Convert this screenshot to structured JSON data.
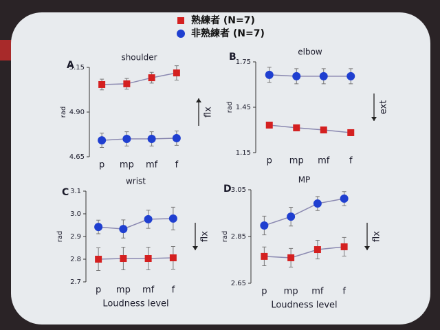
{
  "chart_data": [
    {
      "type": "line",
      "label": "A",
      "title": "shoulder",
      "ylabel": "rad",
      "annotation": "flx",
      "categories": [
        "p",
        "mp",
        "mf",
        "f"
      ],
      "series": [
        {
          "name": "熟練者 (N=7)",
          "color": "#d42020",
          "marker": "square",
          "values": [
            5.054,
            5.058,
            5.092,
            5.119
          ],
          "errors": [
            0.03,
            0.03,
            0.03,
            0.04
          ]
        },
        {
          "name": "非熟練者 (N=7)",
          "color": "#1f3fd0",
          "marker": "circle",
          "values": [
            4.742,
            4.75,
            4.75,
            4.754
          ],
          "errors": [
            0.04,
            0.04,
            0.04,
            0.04
          ]
        }
      ],
      "ylim": [
        4.65,
        5.15
      ],
      "yticks": [
        4.65,
        {
          "value": 4.9,
          "label": "4.90"
        },
        5.15
      ]
    },
    {
      "type": "line",
      "label": "B",
      "title": "elbow",
      "ylabel": "rad",
      "annotation": "ext",
      "categories": [
        "p",
        "mp",
        "mf",
        "f"
      ],
      "series": [
        {
          "name": "熟練者 (N=7)",
          "color": "#d42020",
          "marker": "square",
          "values": [
            1.332,
            1.314,
            1.3,
            1.282
          ],
          "errors": [
            0.02,
            0.02,
            0.02,
            0.02
          ]
        },
        {
          "name": "非熟練者 (N=7)",
          "color": "#1f3fd0",
          "marker": "circle",
          "values": [
            1.664,
            1.655,
            1.655,
            1.655
          ],
          "errors": [
            0.05,
            0.05,
            0.05,
            0.05
          ]
        }
      ],
      "ylim": [
        1.15,
        1.75
      ],
      "yticks": [
        1.15,
        1.45,
        1.75
      ]
    },
    {
      "type": "line",
      "label": "C",
      "title": "wrist",
      "ylabel": "rad",
      "xlabel": "Loudness level",
      "annotation": "flx",
      "categories": [
        "p",
        "mp",
        "mf",
        "f"
      ],
      "series": [
        {
          "name": "熟練者 (N=7)",
          "color": "#d42020",
          "marker": "square",
          "values": [
            2.8,
            2.803,
            2.803,
            2.806
          ],
          "errors": [
            0.05,
            0.05,
            0.05,
            0.05
          ]
        },
        {
          "name": "非熟練者 (N=7)",
          "color": "#1f3fd0",
          "marker": "circle",
          "values": [
            2.942,
            2.933,
            2.976,
            2.979
          ],
          "errors": [
            0.03,
            0.04,
            0.04,
            0.05
          ]
        }
      ],
      "ylim": [
        2.7,
        3.1
      ],
      "yticks": [
        2.7,
        2.8,
        2.9,
        {
          "value": 3,
          "label": "3.0"
        },
        3.1
      ]
    },
    {
      "type": "line",
      "label": "D",
      "title": "MP",
      "ylabel": "rad",
      "xlabel": "Loudness level",
      "annotation": "flx",
      "categories": [
        "p",
        "mp",
        "mf",
        "f"
      ],
      "series": [
        {
          "name": "熟練者 (N=7)",
          "color": "#d42020",
          "marker": "square",
          "values": [
            2.765,
            2.759,
            2.794,
            2.806
          ],
          "errors": [
            0.04,
            0.04,
            0.04,
            0.04
          ]
        },
        {
          "name": "非熟練者 (N=7)",
          "color": "#1f3fd0",
          "marker": "circle",
          "values": [
            2.897,
            2.935,
            2.991,
            3.012
          ],
          "errors": [
            0.04,
            0.04,
            0.03,
            0.03
          ]
        }
      ],
      "ylim": [
        2.65,
        3.05
      ],
      "yticks": [
        2.65,
        2.85,
        3.05
      ]
    }
  ]
}
